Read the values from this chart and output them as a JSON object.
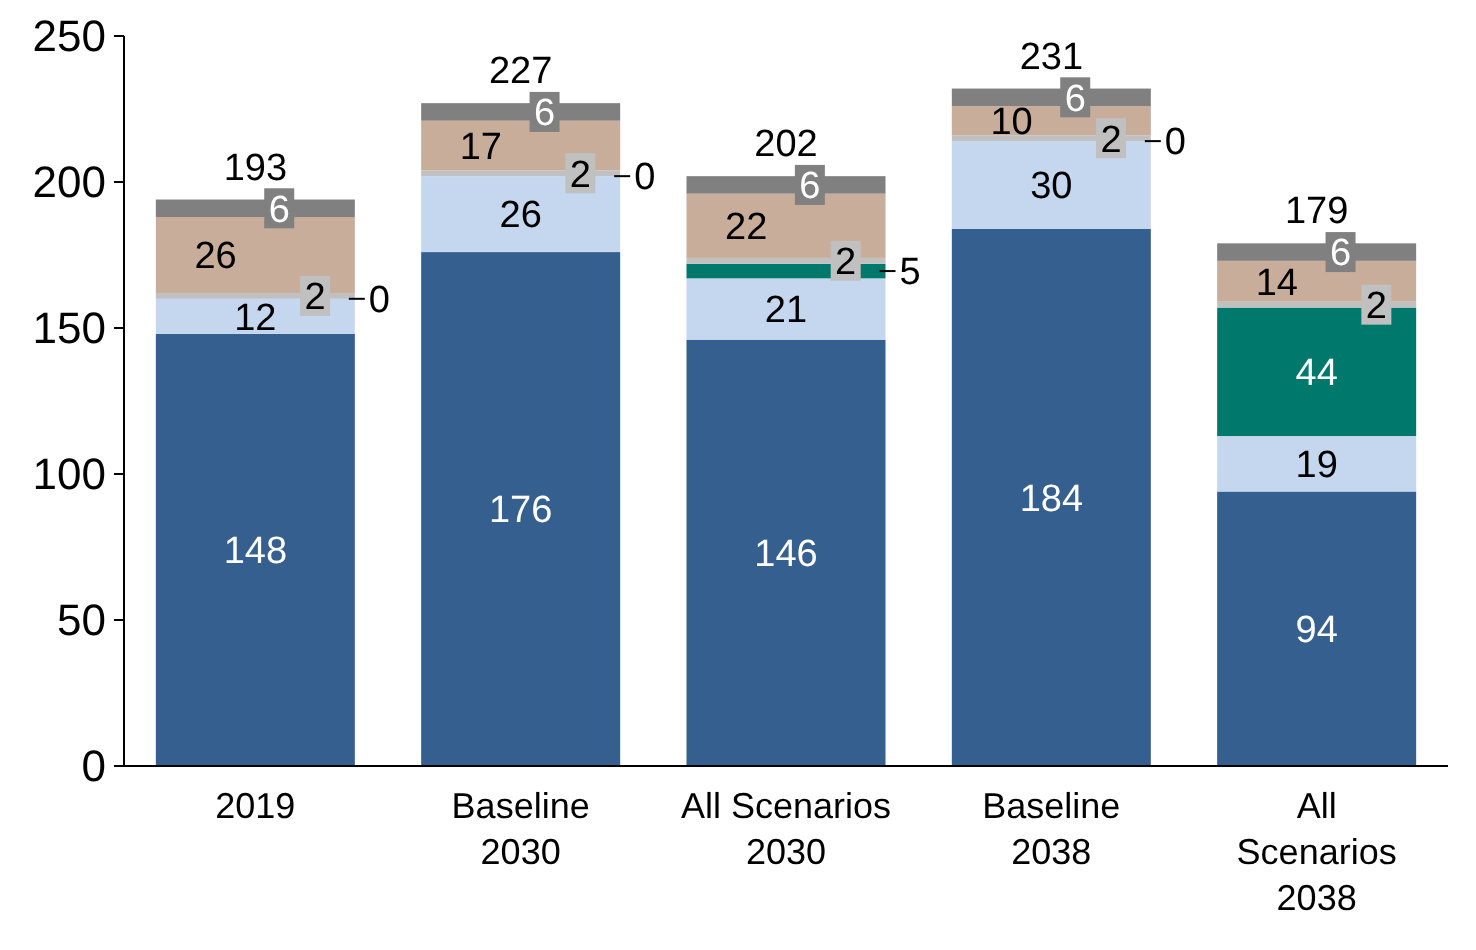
{
  "chart_data": {
    "type": "bar",
    "stacked": true,
    "data_labels": true,
    "categories": [
      "2019",
      "Baseline\n2030",
      "All Scenarios\n2030",
      "Baseline\n2038",
      "All\nScenarios\n2038"
    ],
    "series": [
      {
        "color": "#355f8f",
        "values": [
          148,
          176,
          146,
          184,
          94
        ]
      },
      {
        "color": "#c5d7ef",
        "values": [
          12,
          26,
          21,
          30,
          19
        ]
      },
      {
        "color": "#00786c",
        "values": [
          0,
          0,
          5,
          0,
          44
        ],
        "value_labels": [
          null,
          null,
          "5",
          null,
          "44"
        ]
      },
      {
        "color": "#c0c0c0",
        "values": [
          2,
          2,
          2,
          2,
          2
        ]
      },
      {
        "color": "#c8ad9b",
        "values": [
          26,
          17,
          22,
          10,
          14
        ]
      },
      {
        "color": "#808080",
        "values": [
          6,
          6,
          6,
          6,
          6
        ]
      }
    ],
    "totals": [
      "193",
      "227",
      "202",
      "231",
      "179"
    ],
    "annotations": [
      {
        "text": "0",
        "x": "2019",
        "y": 160
      },
      {
        "text": "0",
        "x": "Baseline\n2030",
        "y": 202
      },
      {
        "text": "0",
        "x": "Baseline\n2038",
        "y": 214
      }
    ],
    "ylim": [
      0,
      250
    ],
    "yticks": [
      0,
      50,
      100,
      150,
      200,
      250
    ],
    "grid": false
  }
}
